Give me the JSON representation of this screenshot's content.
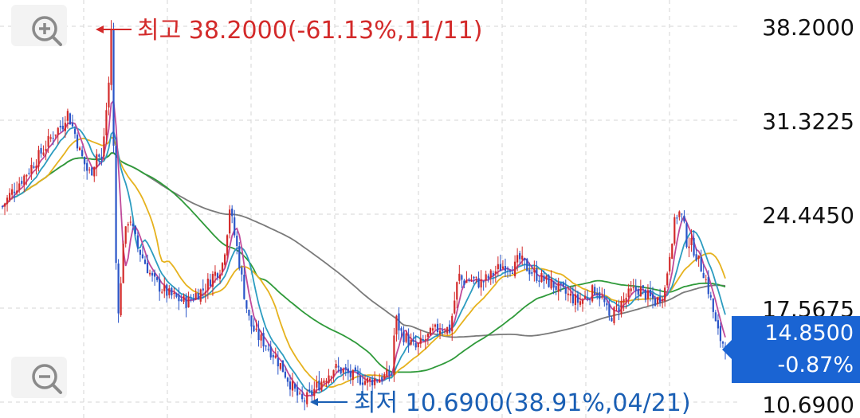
{
  "chart_data": {
    "type": "candlestick",
    "title": "",
    "x_range": {
      "first_label": "",
      "last_label": ""
    },
    "y_axis": {
      "ticks": [
        "38.2000",
        "31.3225",
        "24.4450",
        "17.5675",
        "10.6900"
      ],
      "tick_values": [
        38.2,
        31.3225,
        24.445,
        17.5675,
        10.69
      ],
      "range": [
        10.69,
        38.2
      ],
      "position": "right"
    },
    "grid": true,
    "annotations": {
      "high": {
        "text": "최고 38.2000(-61.13%,11/11)",
        "value": 38.2,
        "color": "#d32a2a"
      },
      "low": {
        "text": "최저 10.6900(38.91%,04/21)",
        "value": 10.69,
        "color": "#1a5fb4"
      }
    },
    "current_price": {
      "value": "14.8500",
      "change": "-0.87%",
      "badge_color": "#1a64d3"
    },
    "colors": {
      "up": "#d32a2a",
      "down": "#2a55c8",
      "ma5": "#c04a9a",
      "ma10": "#2c9cc0",
      "ma20": "#e6b21e",
      "ma60": "#2f9a3a",
      "ma120": "#7a7a7a"
    },
    "price_path": [
      [
        0,
        25.0
      ],
      [
        2,
        26.0
      ],
      [
        5,
        27.2
      ],
      [
        8,
        28.5
      ],
      [
        10,
        29.4
      ],
      [
        12,
        30.4
      ],
      [
        14,
        31.0
      ],
      [
        15,
        32.0
      ],
      [
        16,
        31.1
      ],
      [
        17,
        30.2
      ],
      [
        18,
        29.0
      ],
      [
        19,
        28.2
      ],
      [
        20,
        27.4
      ],
      [
        21,
        27.8
      ],
      [
        22,
        29.0
      ],
      [
        23,
        28.2
      ],
      [
        24,
        31.5
      ],
      [
        25,
        35.0
      ],
      [
        25.3,
        38.2
      ],
      [
        25.6,
        33.0
      ],
      [
        26.2,
        24.0
      ],
      [
        26.6,
        18.0
      ],
      [
        27.1,
        17.5
      ],
      [
        27.6,
        19.5
      ],
      [
        28.0,
        22.5
      ],
      [
        28.6,
        23.0
      ],
      [
        29.5,
        24.5
      ],
      [
        30.5,
        23.0
      ],
      [
        31.5,
        22.0
      ],
      [
        33,
        21.0
      ],
      [
        35,
        19.6
      ],
      [
        37,
        19.0
      ],
      [
        39,
        18.5
      ],
      [
        41,
        18.2
      ],
      [
        43,
        18.0
      ],
      [
        45,
        18.6
      ],
      [
        47,
        19.0
      ],
      [
        49,
        20.0
      ],
      [
        51,
        20.6
      ],
      [
        52,
        22.5
      ],
      [
        52.8,
        25.0
      ],
      [
        53.6,
        23.5
      ],
      [
        54.5,
        22.0
      ],
      [
        55.5,
        20.0
      ],
      [
        56.5,
        18.0
      ],
      [
        57.5,
        16.5
      ],
      [
        59,
        15.6
      ],
      [
        61,
        15.0
      ],
      [
        63,
        14.2
      ],
      [
        65,
        13.2
      ],
      [
        67,
        12.0
      ],
      [
        68.5,
        11.2
      ],
      [
        69.5,
        10.7
      ],
      [
        71,
        11.0
      ],
      [
        73,
        11.8
      ],
      [
        75,
        12.5
      ],
      [
        77,
        13.2
      ],
      [
        79,
        13.0
      ],
      [
        81,
        12.6
      ],
      [
        83,
        12.4
      ],
      [
        85,
        12.2
      ],
      [
        87,
        12.4
      ],
      [
        89,
        12.6
      ],
      [
        90.5,
        12.8
      ],
      [
        91.3,
        17.0
      ],
      [
        92.5,
        15.8
      ],
      [
        94,
        15.3
      ],
      [
        96,
        14.6
      ],
      [
        98,
        15.2
      ],
      [
        100,
        15.8
      ],
      [
        102,
        16.2
      ],
      [
        104,
        16.0
      ],
      [
        105,
        18.0
      ],
      [
        106,
        20.0
      ],
      [
        107,
        19.5
      ],
      [
        109,
        19.7
      ],
      [
        111,
        19.4
      ],
      [
        113,
        19.8
      ],
      [
        115,
        20.4
      ],
      [
        117,
        20.8
      ],
      [
        119,
        20.5
      ],
      [
        120,
        21.2
      ],
      [
        122,
        20.5
      ],
      [
        124,
        20.0
      ],
      [
        126,
        19.6
      ],
      [
        128,
        19.3
      ],
      [
        130,
        18.8
      ],
      [
        132,
        18.4
      ],
      [
        134,
        18.0
      ],
      [
        136,
        18.5
      ],
      [
        138,
        19.0
      ],
      [
        140,
        17.8
      ],
      [
        141,
        16.8
      ],
      [
        142,
        17.2
      ],
      [
        144,
        18.0
      ],
      [
        146,
        18.7
      ],
      [
        148,
        19.0
      ],
      [
        150,
        18.4
      ],
      [
        152,
        18.0
      ],
      [
        154,
        19.0
      ],
      [
        155,
        21.5
      ],
      [
        156,
        23.5
      ],
      [
        157,
        24.7
      ],
      [
        158,
        24.2
      ],
      [
        159,
        22.5
      ],
      [
        160,
        22.3
      ],
      [
        161,
        21.7
      ],
      [
        162,
        20.8
      ],
      [
        163,
        20.2
      ],
      [
        164,
        19.0
      ],
      [
        165,
        17.6
      ],
      [
        166,
        16.0
      ],
      [
        167,
        15.2
      ],
      [
        168,
        14.85
      ]
    ]
  }
}
